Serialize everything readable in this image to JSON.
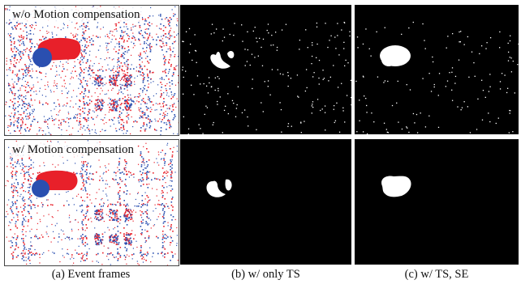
{
  "figure": {
    "row_labels": [
      "w/o Motion compensation",
      "w/ Motion compensation"
    ],
    "captions": [
      "(a) Event frames",
      "(b) w/ only TS",
      "(c) w/ TS, SE"
    ]
  },
  "colors": {
    "positive_event": "#e8202a",
    "negative_event": "#2a4fb0",
    "mask_background": "#000000",
    "mask_foreground": "#ffffff"
  }
}
